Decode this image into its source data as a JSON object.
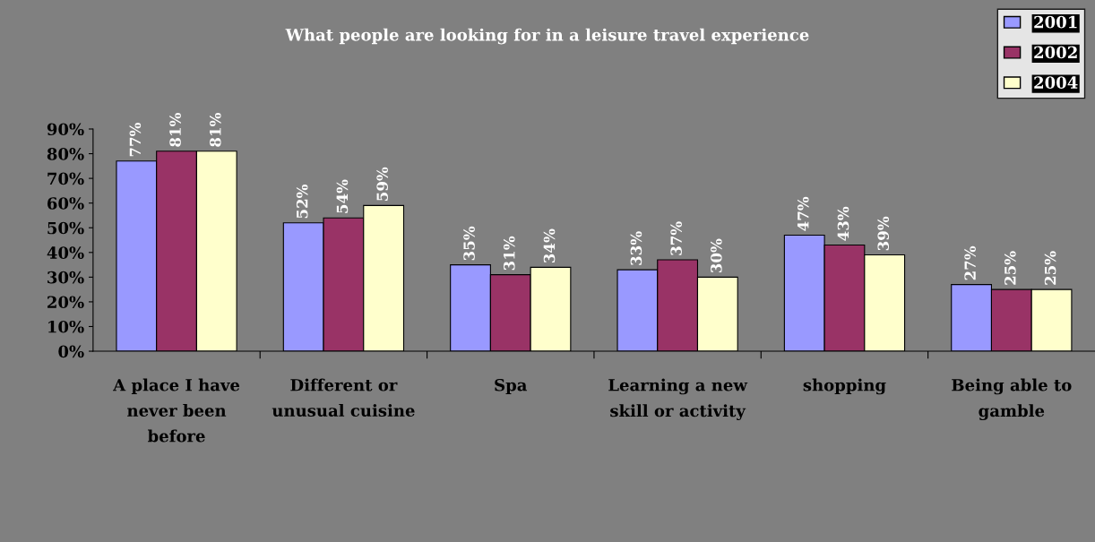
{
  "chart_data": {
    "type": "bar",
    "title": "What people are looking for in a leisure travel experience",
    "categories": [
      "A place I have\nnever been\nbefore",
      "Different or\nunusual cuisine",
      "Spa",
      "Learning a new\nskill or activity",
      "shopping",
      "Being able to\ngamble"
    ],
    "series": [
      {
        "name": "2001",
        "color": "#9999ff",
        "values": [
          77,
          52,
          35,
          33,
          47,
          27
        ],
        "value_labels": [
          "77%",
          "52%",
          "35%",
          "33%",
          "47%",
          "27%"
        ]
      },
      {
        "name": "2002",
        "color": "#993366",
        "values": [
          81,
          54,
          31,
          37,
          43,
          25
        ],
        "value_labels": [
          "81%",
          "54%",
          "31%",
          "37%",
          "43%",
          "25%"
        ]
      },
      {
        "name": "2004",
        "color": "#ffffcc",
        "values": [
          81,
          59,
          34,
          30,
          39,
          25
        ],
        "value_labels": [
          "81%",
          "59%",
          "34%",
          "30%",
          "39%",
          "25%"
        ]
      }
    ],
    "ylim": [
      0,
      90
    ],
    "yticks": [
      {
        "value": 0,
        "label": "0%"
      },
      {
        "value": 10,
        "label": "10%"
      },
      {
        "value": 20,
        "label": "20%"
      },
      {
        "value": 30,
        "label": "30%"
      },
      {
        "value": 40,
        "label": "40%"
      },
      {
        "value": 50,
        "label": "50%"
      },
      {
        "value": 60,
        "label": "60%"
      },
      {
        "value": 70,
        "label": "70%"
      },
      {
        "value": 80,
        "label": "80%"
      },
      {
        "value": 90,
        "label": "90%"
      }
    ],
    "grid": false,
    "legend": "top right"
  }
}
